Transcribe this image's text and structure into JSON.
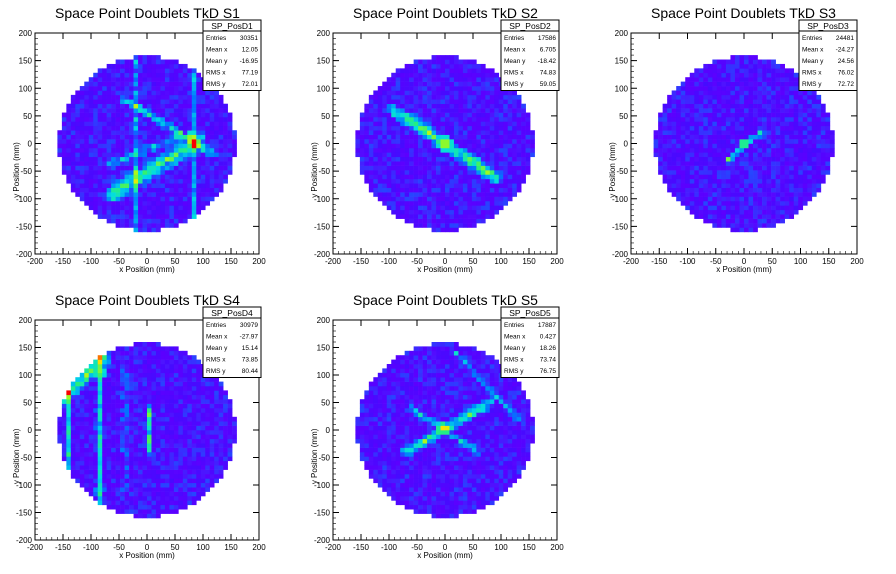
{
  "chart_data": [
    {
      "type": "heatmap",
      "title": "Space Point Doublets TkD S1",
      "xlabel": "x Position (mm)",
      "ylabel": "y Position (mm)",
      "xlim": [
        -200,
        200
      ],
      "ylim": [
        -200,
        200
      ],
      "xticks": [
        -200,
        -150,
        -100,
        -50,
        0,
        50,
        100,
        150,
        200
      ],
      "yticks": [
        -200,
        -150,
        -100,
        -50,
        0,
        50,
        100,
        150,
        200
      ],
      "stats": {
        "name": "SP_PosD1",
        "rows": [
          {
            "label": "Entries",
            "value": "30351"
          },
          {
            "label": "Mean x",
            "value": "12.05"
          },
          {
            "label": "Mean y",
            "value": "-16.95"
          },
          {
            "label": "RMS x",
            "value": "77.19"
          },
          {
            "label": "RMS y",
            "value": "72.01"
          }
        ]
      },
      "features": [
        {
          "kind": "line",
          "x1": -40,
          "y1": 80,
          "x2": 120,
          "y2": -20,
          "w": 9,
          "v": 0.42
        },
        {
          "kind": "line",
          "x1": -60,
          "y1": -90,
          "x2": 90,
          "y2": 5,
          "w": 22,
          "v": 0.5
        },
        {
          "kind": "line",
          "x1": -70,
          "y1": -40,
          "x2": 60,
          "y2": 15,
          "w": 10,
          "v": 0.35
        },
        {
          "kind": "line",
          "x1": -20,
          "y1": 160,
          "x2": -20,
          "y2": -160,
          "w": 7,
          "v": 0.25
        },
        {
          "kind": "line",
          "x1": 85,
          "y1": 160,
          "x2": 85,
          "y2": -160,
          "w": 7,
          "v": 0.3
        },
        {
          "kind": "blob",
          "x": 80,
          "y": 12,
          "r": 10,
          "v": 0.95
        }
      ]
    },
    {
      "type": "heatmap",
      "title": "Space Point Doublets TkD S2",
      "xlabel": "x Position (mm)",
      "ylabel": "y Position (mm)",
      "xlim": [
        -200,
        200
      ],
      "ylim": [
        -200,
        200
      ],
      "xticks": [
        -200,
        -150,
        -100,
        -50,
        0,
        50,
        100,
        150,
        200
      ],
      "yticks": [
        -200,
        -150,
        -100,
        -50,
        0,
        50,
        100,
        150,
        200
      ],
      "stats": {
        "name": "SP_PosD2",
        "rows": [
          {
            "label": "Entries",
            "value": "17586"
          },
          {
            "label": "Mean x",
            "value": "6.705"
          },
          {
            "label": "Mean y",
            "value": "-18.42"
          },
          {
            "label": "RMS x",
            "value": "74.83"
          },
          {
            "label": "RMS y",
            "value": "59.05"
          }
        ]
      },
      "features": [
        {
          "kind": "line",
          "x1": -90,
          "y1": 60,
          "x2": 90,
          "y2": -60,
          "w": 16,
          "v": 0.55
        },
        {
          "kind": "blob",
          "x": 0,
          "y": 0,
          "r": 14,
          "v": 0.95
        }
      ]
    },
    {
      "type": "heatmap",
      "title": "Space Point Doublets TkD S3",
      "xlabel": "x Position (mm)",
      "ylabel": "y Position (mm)",
      "xlim": [
        -200,
        200
      ],
      "ylim": [
        -200,
        200
      ],
      "xticks": [
        -200,
        -150,
        -100,
        -50,
        0,
        50,
        100,
        150,
        200
      ],
      "yticks": [
        -200,
        -150,
        -100,
        -50,
        0,
        50,
        100,
        150,
        200
      ],
      "stats": {
        "name": "SP_PosD3",
        "rows": [
          {
            "label": "Entries",
            "value": "24481"
          },
          {
            "label": "Mean x",
            "value": "-24.27"
          },
          {
            "label": "Mean y",
            "value": "24.56"
          },
          {
            "label": "RMS x",
            "value": "76.02"
          },
          {
            "label": "RMS y",
            "value": "72.72"
          }
        ]
      },
      "features": [
        {
          "kind": "line",
          "x1": -30,
          "y1": -30,
          "x2": 30,
          "y2": 20,
          "w": 8,
          "v": 0.45
        },
        {
          "kind": "blob",
          "x": 0,
          "y": 0,
          "r": 8,
          "v": 0.95
        }
      ]
    },
    {
      "type": "heatmap",
      "title": "Space Point Doublets TkD S4",
      "xlabel": "x Position (mm)",
      "ylabel": "y Position (mm)",
      "xlim": [
        -200,
        200
      ],
      "ylim": [
        -200,
        200
      ],
      "xticks": [
        -200,
        -150,
        -100,
        -50,
        0,
        50,
        100,
        150,
        200
      ],
      "yticks": [
        -200,
        -150,
        -100,
        -50,
        0,
        50,
        100,
        150,
        200
      ],
      "stats": {
        "name": "SP_PosD4",
        "rows": [
          {
            "label": "Entries",
            "value": "30979"
          },
          {
            "label": "Mean x",
            "value": "-27.97"
          },
          {
            "label": "Mean y",
            "value": "15.14"
          },
          {
            "label": "RMS x",
            "value": "73.85"
          },
          {
            "label": "RMS y",
            "value": "80.44"
          }
        ]
      },
      "features": [
        {
          "kind": "line",
          "x1": -150,
          "y1": 60,
          "x2": -80,
          "y2": 130,
          "w": 20,
          "v": 0.6
        },
        {
          "kind": "line",
          "x1": -85,
          "y1": 150,
          "x2": -85,
          "y2": -130,
          "w": 8,
          "v": 0.4
        },
        {
          "kind": "line",
          "x1": -140,
          "y1": 120,
          "x2": -140,
          "y2": -90,
          "w": 7,
          "v": 0.35
        },
        {
          "kind": "line",
          "x1": -40,
          "y1": 120,
          "x2": -40,
          "y2": -120,
          "w": 6,
          "v": 0.3
        },
        {
          "kind": "line",
          "x1": 5,
          "y1": 40,
          "x2": 5,
          "y2": -40,
          "w": 6,
          "v": 0.55
        },
        {
          "kind": "blob",
          "x": -85,
          "y": 105,
          "r": 12,
          "v": 0.85
        },
        {
          "kind": "blob",
          "x": -85,
          "y": -110,
          "r": 10,
          "v": 0.6
        }
      ]
    },
    {
      "type": "heatmap",
      "title": "Space Point Doublets TkD S5",
      "xlabel": "x Position (mm)",
      "ylabel": "y Position (mm)",
      "xlim": [
        -200,
        200
      ],
      "ylim": [
        -200,
        200
      ],
      "xticks": [
        -200,
        -150,
        -100,
        -50,
        0,
        50,
        100,
        150,
        200
      ],
      "yticks": [
        -200,
        -150,
        -100,
        -50,
        0,
        50,
        100,
        150,
        200
      ],
      "stats": {
        "name": "SP_PosD5",
        "rows": [
          {
            "label": "Entries",
            "value": "17887"
          },
          {
            "label": "Mean x",
            "value": "0.427"
          },
          {
            "label": "Mean y",
            "value": "18.26"
          },
          {
            "label": "RMS x",
            "value": "73.74"
          },
          {
            "label": "RMS y",
            "value": "76.75"
          }
        ]
      },
      "features": [
        {
          "kind": "line",
          "x1": -70,
          "y1": -40,
          "x2": 80,
          "y2": 50,
          "w": 12,
          "v": 0.5
        },
        {
          "kind": "line",
          "x1": -60,
          "y1": 40,
          "x2": 60,
          "y2": -40,
          "w": 9,
          "v": 0.35
        },
        {
          "kind": "line",
          "x1": 20,
          "y1": 140,
          "x2": 130,
          "y2": 20,
          "w": 8,
          "v": 0.3
        },
        {
          "kind": "blob",
          "x": -5,
          "y": 5,
          "r": 10,
          "v": 0.95
        }
      ]
    }
  ]
}
